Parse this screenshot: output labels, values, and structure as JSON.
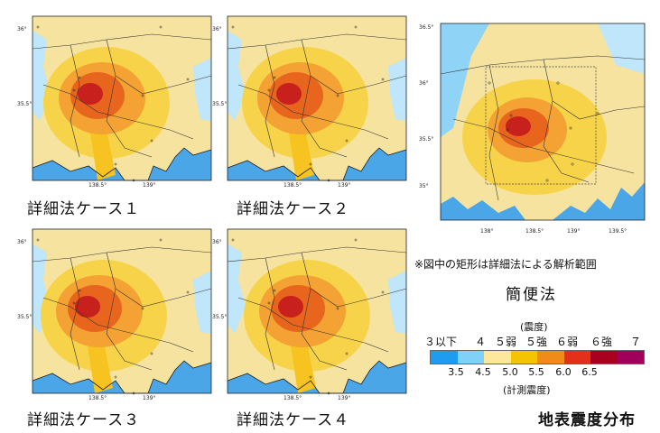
{
  "panels": [
    {
      "id": "case1",
      "caption": "詳細法ケース１"
    },
    {
      "id": "case2",
      "caption": "詳細法ケース２"
    },
    {
      "id": "case3",
      "caption": "詳細法ケース３"
    },
    {
      "id": "case4",
      "caption": "詳細法ケース４"
    },
    {
      "id": "simple",
      "caption": "簡便法"
    }
  ],
  "axes_small": {
    "lat_ticks": [
      "36°",
      "35.5°"
    ],
    "lon_ticks": [
      "138.5°",
      "139°"
    ]
  },
  "axes_large": {
    "lat_ticks": [
      "36.5°",
      "36°",
      "35.5°",
      "35°"
    ],
    "lon_ticks": [
      "138°",
      "138.5°",
      "139°",
      "139.5°"
    ]
  },
  "note": "※図中の矩形は詳細法による解析範囲",
  "legend": {
    "top_label": "(震度)",
    "classes": [
      "３以下",
      "４",
      "５弱",
      "５強",
      "６弱",
      "６強",
      "７"
    ],
    "thresholds": [
      "3.5",
      "4.5",
      "5.0",
      "5.5",
      "6.0",
      "6.5"
    ],
    "bottom_label": "(計測震度)",
    "colors": [
      "#1e9cf0",
      "#7fd1f7",
      "#fce79a",
      "#f5c400",
      "#f08a18",
      "#e2301a",
      "#a8001e",
      "#a0005a"
    ]
  },
  "colors": {
    "sea": "#4aa6e6",
    "land_base": "#f6e3a0"
  },
  "figure_title": "地表震度分布"
}
